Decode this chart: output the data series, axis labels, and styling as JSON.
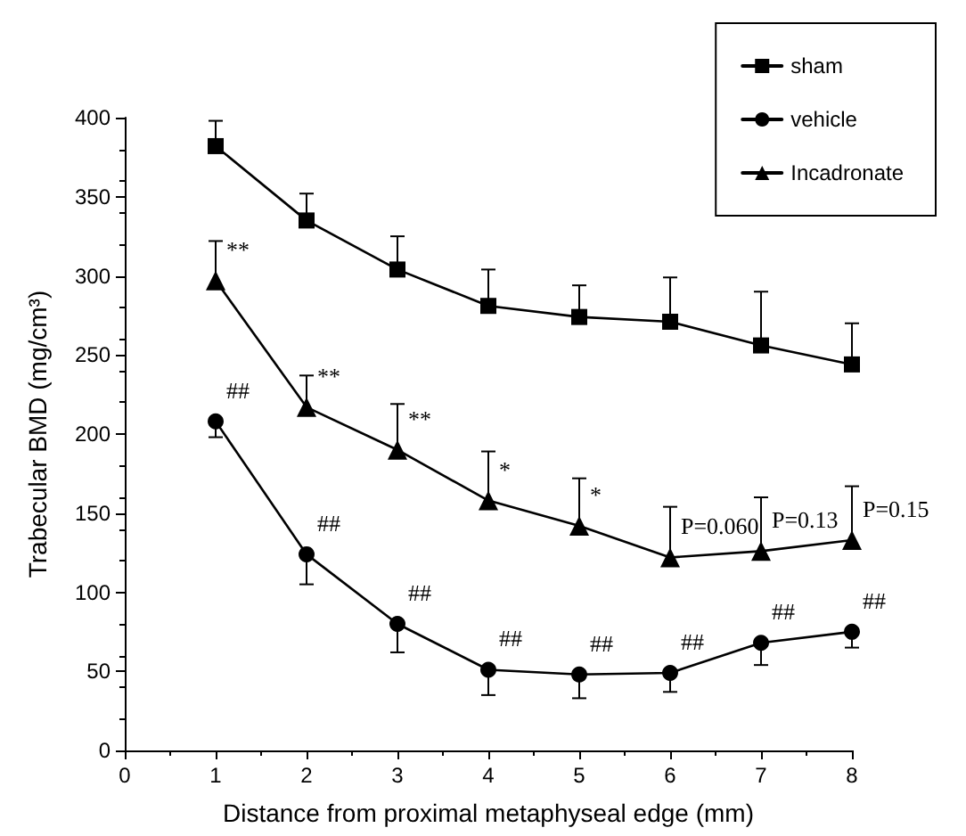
{
  "chart_data": {
    "type": "line",
    "xlabel": "Distance from proximal metaphyseal edge (mm)",
    "ylabel": "Trabecular BMD (mg/cm³)",
    "x": [
      1,
      2,
      3,
      4,
      5,
      6,
      7,
      8
    ],
    "series": [
      {
        "name": "sham",
        "color": "#000000",
        "marker": "square",
        "values": [
          382,
          335,
          304,
          281,
          274,
          271,
          256,
          244
        ],
        "errors": [
          [
            382,
            398
          ],
          [
            335,
            352
          ],
          [
            304,
            325
          ],
          [
            281,
            304
          ],
          [
            274,
            294
          ],
          [
            271,
            299
          ],
          [
            256,
            290
          ],
          [
            244,
            270
          ]
        ]
      },
      {
        "name": "vehicle",
        "color": "#000000",
        "marker": "circle",
        "values": [
          208,
          124,
          80,
          51,
          48,
          49,
          68,
          75
        ],
        "errors": [
          [
            198,
            208
          ],
          [
            105,
            124
          ],
          [
            62,
            80
          ],
          [
            35,
            51
          ],
          [
            33,
            48
          ],
          [
            37,
            49
          ],
          [
            54,
            68
          ],
          [
            65,
            75
          ]
        ]
      },
      {
        "name": "Incadronate",
        "color": "#000000",
        "marker": "triangle",
        "values": [
          297,
          217,
          190,
          158,
          142,
          122,
          126,
          133
        ],
        "errors": [
          [
            297,
            322
          ],
          [
            217,
            237
          ],
          [
            190,
            219
          ],
          [
            158,
            189
          ],
          [
            142,
            172
          ],
          [
            122,
            154
          ],
          [
            126,
            160
          ],
          [
            133,
            167
          ]
        ]
      }
    ],
    "xlim": [
      0,
      8
    ],
    "xticks": [
      0,
      1,
      2,
      3,
      4,
      5,
      6,
      7,
      8
    ],
    "ylim": [
      0,
      400
    ],
    "yticks": [
      0,
      50,
      100,
      150,
      200,
      250,
      300,
      350,
      400
    ],
    "grid": false,
    "legend": "top right",
    "line_style": "solid",
    "annotations": [
      {
        "text": "**",
        "x": 1,
        "y": 297
      },
      {
        "text": "**",
        "x": 2,
        "y": 217
      },
      {
        "text": "**",
        "x": 3,
        "y": 190
      },
      {
        "text": "*",
        "x": 4,
        "y": 158
      },
      {
        "text": "*",
        "x": 5,
        "y": 142
      },
      {
        "text": "P=0.060",
        "x": 6,
        "y": 122
      },
      {
        "text": "P=0.13",
        "x": 7,
        "y": 126
      },
      {
        "text": "P=0.15",
        "x": 8,
        "y": 133
      },
      {
        "text": "##",
        "x": 1,
        "y": 208
      },
      {
        "text": "##",
        "x": 2,
        "y": 124
      },
      {
        "text": "##",
        "x": 3,
        "y": 80
      },
      {
        "text": "##",
        "x": 4,
        "y": 51
      },
      {
        "text": "##",
        "x": 5,
        "y": 48
      },
      {
        "text": "##",
        "x": 6,
        "y": 49
      },
      {
        "text": "##",
        "x": 7,
        "y": 68
      },
      {
        "text": "##",
        "x": 8,
        "y": 75
      }
    ]
  }
}
